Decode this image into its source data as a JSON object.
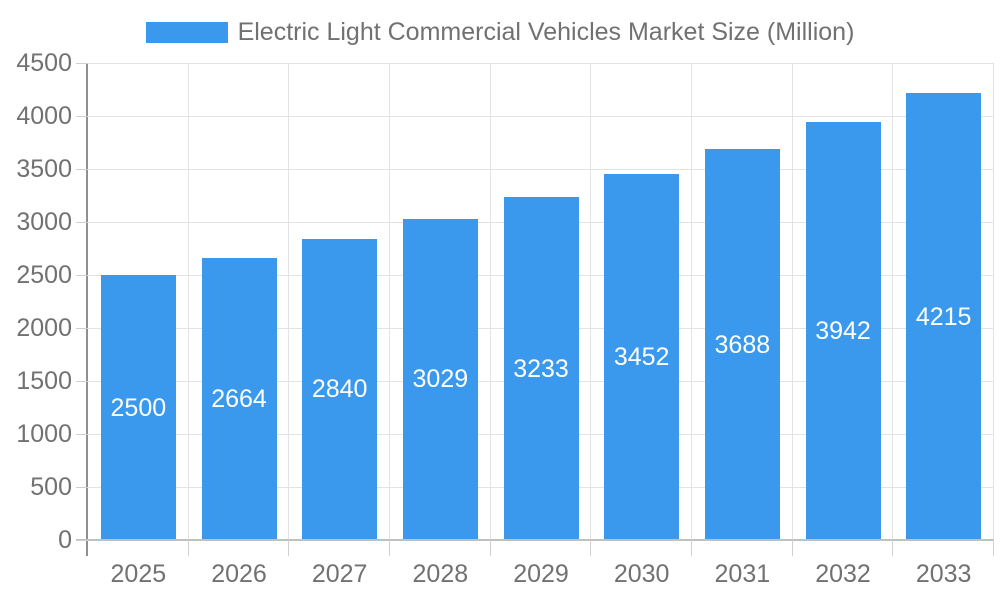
{
  "chart_data": {
    "type": "bar",
    "title": "Electric Light Commercial Vehicles Market Size (Million)",
    "legend_entries": [
      "Electric Light Commercial Vehicles Market Size (Million)"
    ],
    "legend_position": "top",
    "categories": [
      "2025",
      "2026",
      "2027",
      "2028",
      "2029",
      "2030",
      "2031",
      "2032",
      "2033"
    ],
    "series": [
      {
        "name": "Electric Light Commercial Vehicles Market Size (Million)",
        "values": [
          2500,
          2664,
          2840,
          3029,
          3233,
          3452,
          3688,
          3942,
          4215
        ]
      }
    ],
    "bar_value_labels": [
      "2500",
      "2664",
      "2840",
      "3029",
      "3233",
      "3452",
      "3688",
      "3942",
      "4215"
    ],
    "xlabel": "",
    "ylabel": "",
    "ylim": [
      0,
      4500
    ],
    "y_ticks": [
      0,
      500,
      1000,
      1500,
      2000,
      2500,
      3000,
      3500,
      4000,
      4500
    ],
    "grid": "on",
    "colors": {
      "bar": "#3a99ec",
      "bar_label_text": "#ffffff",
      "axis_text": "#717171",
      "gridline": "#e3e3e3",
      "tick_mark": "#cfcfcf",
      "y_axis_line": "#8f8f8f",
      "x_axis_line": "#c0c0c0",
      "background": "#ffffff"
    }
  }
}
